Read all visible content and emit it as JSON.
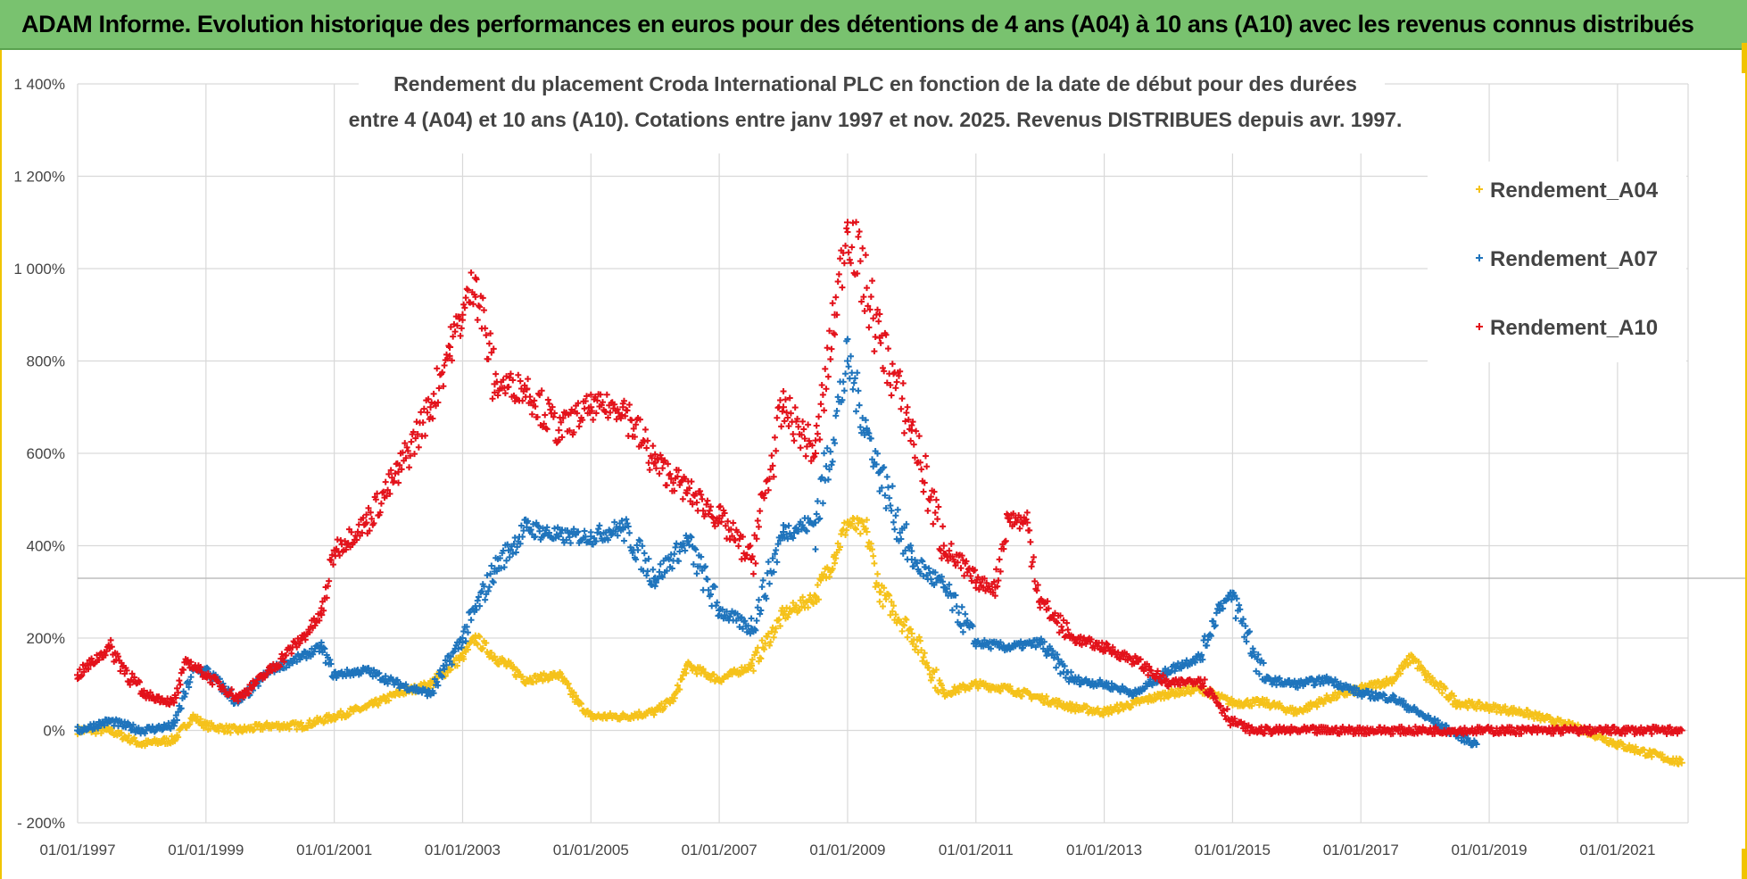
{
  "banner": {
    "title": "ADAM Informe. Evolution historique des performances en euros pour des détentions de 4 ans (A04) à 10 ans (A10) avec les revenus connus distribués"
  },
  "colors": {
    "banner_bg": "#79c26f",
    "A04": "#f5c21b",
    "A07": "#1f74bc",
    "A10": "#e3121b",
    "grid": "#d9d9d9",
    "text": "#444444"
  },
  "chart_data": {
    "type": "scatter",
    "title_line1": "Rendement du placement Croda International PLC en fonction de la date de début pour des durées",
    "title_line2": "entre 4 (A04) et 10 ans (A10).  Cotations entre janv 1997 et nov. 2025. Revenus DISTRIBUES depuis avr. 1997.",
    "ylim": [
      -200,
      1400
    ],
    "yticks": [
      -200,
      0,
      200,
      400,
      600,
      800,
      1000,
      1200,
      1400
    ],
    "ytick_labels": [
      "- 200%",
      "0%",
      "200%",
      "400%",
      "600%",
      "800%",
      "1 000%",
      "1 200%",
      "1 400%"
    ],
    "xlim": [
      1997.0,
      2022.1
    ],
    "xticks": [
      1997,
      1999,
      2001,
      2003,
      2005,
      2007,
      2009,
      2011,
      2013,
      2015,
      2017,
      2019,
      2021
    ],
    "xtick_labels": [
      "01/01/1997",
      "01/01/1999",
      "01/01/2001",
      "01/01/2003",
      "01/01/2005",
      "01/01/2007",
      "01/01/2009",
      "01/01/2011",
      "01/01/2013",
      "01/01/2015",
      "01/01/2017",
      "01/01/2019",
      "01/01/2021"
    ],
    "legend_position": "top-right",
    "marker": "+",
    "series": [
      {
        "name": "Rendement_A04",
        "x": [
          1997.0,
          1997.5,
          1998.0,
          1998.5,
          1998.8,
          1999.0,
          1999.5,
          2000.0,
          2000.5,
          2001.0,
          2001.5,
          2002.0,
          2002.5,
          2003.0,
          2003.2,
          2003.5,
          2004.0,
          2004.5,
          2004.8,
          2005.0,
          2005.5,
          2006.0,
          2006.3,
          2006.5,
          2007.0,
          2007.5,
          2008.0,
          2008.5,
          2008.8,
          2009.0,
          2009.3,
          2009.5,
          2010.0,
          2010.5,
          2011.0,
          2011.5,
          2012.0,
          2012.5,
          2013.0,
          2013.5,
          2014.0,
          2014.5,
          2015.0,
          2015.5,
          2016.0,
          2016.5,
          2017.0,
          2017.5,
          2017.8,
          2018.0,
          2018.5,
          2019.0,
          2019.5,
          2020.0,
          2020.5,
          2021.0,
          2021.5,
          2022.0
        ],
        "y": [
          0,
          0,
          -30,
          -20,
          30,
          10,
          0,
          10,
          10,
          30,
          50,
          80,
          100,
          160,
          200,
          160,
          110,
          120,
          60,
          30,
          30,
          40,
          70,
          140,
          110,
          140,
          250,
          290,
          380,
          450,
          430,
          300,
          210,
          80,
          100,
          90,
          70,
          50,
          40,
          60,
          80,
          90,
          60,
          60,
          40,
          70,
          90,
          110,
          160,
          120,
          60,
          50,
          40,
          20,
          0,
          -30,
          -50,
          -70
        ]
      },
      {
        "name": "Rendement_A07",
        "x": [
          1997.0,
          1997.5,
          1998.0,
          1998.5,
          1998.8,
          1999.0,
          1999.5,
          2000.0,
          2000.5,
          2000.8,
          2001.0,
          2001.5,
          2002.0,
          2002.5,
          2003.0,
          2003.5,
          2004.0,
          2004.5,
          2005.0,
          2005.5,
          2006.0,
          2006.5,
          2007.0,
          2007.5,
          2008.0,
          2008.5,
          2009.0,
          2009.3,
          2009.5,
          2010.0,
          2010.5,
          2011.0,
          2011.5,
          2012.0,
          2012.5,
          2013.0,
          2013.5,
          2014.0,
          2014.5,
          2014.8,
          2015.0,
          2015.5,
          2016.0,
          2016.5,
          2017.0,
          2017.5,
          2018.0,
          2018.5,
          2018.8
        ],
        "y": [
          0,
          20,
          0,
          10,
          130,
          130,
          60,
          130,
          160,
          180,
          120,
          130,
          100,
          80,
          200,
          350,
          440,
          420,
          420,
          440,
          330,
          410,
          260,
          220,
          430,
          450,
          800,
          650,
          560,
          370,
          310,
          190,
          180,
          190,
          110,
          100,
          80,
          130,
          160,
          270,
          290,
          110,
          100,
          110,
          80,
          70,
          30,
          -10,
          -30
        ]
      },
      {
        "name": "Rendement_A10",
        "x": [
          1997.0,
          1997.5,
          1998.0,
          1998.5,
          1998.7,
          1999.0,
          1999.5,
          2000.0,
          2000.5,
          2000.8,
          2001.0,
          2001.5,
          2002.0,
          2002.5,
          2002.8,
          2003.0,
          2003.2,
          2003.5,
          2004.0,
          2004.5,
          2005.0,
          2005.5,
          2006.0,
          2006.5,
          2007.0,
          2007.5,
          2008.0,
          2008.5,
          2008.8,
          2009.0,
          2009.5,
          2010.0,
          2010.5,
          2011.0,
          2011.3,
          2011.5,
          2011.8,
          2012.0,
          2012.5,
          2013.0,
          2013.5,
          2014.0,
          2014.5,
          2015.0,
          2015.3,
          2015.5,
          2016.0,
          2017.0,
          2018.0,
          2019.0,
          2020.0,
          2021.0,
          2022.0
        ],
        "y": [
          120,
          180,
          80,
          60,
          150,
          120,
          70,
          130,
          200,
          250,
          390,
          450,
          560,
          700,
          830,
          900,
          980,
          750,
          740,
          650,
          700,
          700,
          580,
          520,
          460,
          370,
          700,
          600,
          900,
          1100,
          850,
          650,
          400,
          320,
          310,
          460,
          450,
          280,
          200,
          180,
          150,
          100,
          110,
          20,
          0,
          0,
          0,
          0,
          0,
          0,
          0,
          0,
          0
        ]
      }
    ]
  }
}
